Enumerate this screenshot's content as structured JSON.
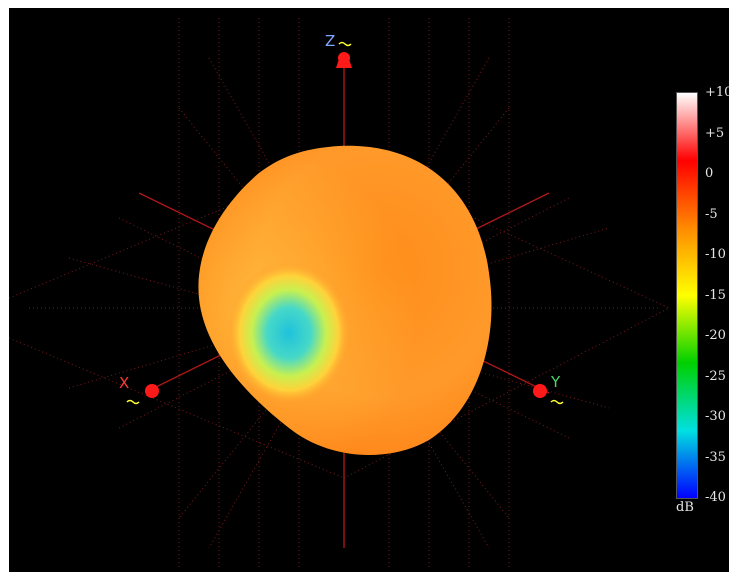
{
  "axes": {
    "x": {
      "label": "X",
      "color": "#ff3b3b"
    },
    "y": {
      "label": "Y",
      "color": "#4fd46a"
    },
    "z": {
      "label": "Z",
      "color": "#7fa8ff"
    }
  },
  "colorbar": {
    "unit": "dB",
    "ticks": [
      "+10",
      "+5",
      "0",
      "-5",
      "-10",
      "-15",
      "-20",
      "-25",
      "-30",
      "-35",
      "-40"
    ],
    "range": [
      -40,
      10
    ],
    "colors": [
      "#ffffff",
      "#ff0000",
      "#ff8a00",
      "#ffff00",
      "#00d000",
      "#00e0e0",
      "#0000ff"
    ]
  },
  "pattern": {
    "body_color": "#ff9a2a",
    "null_color": "#35d2d8"
  }
}
